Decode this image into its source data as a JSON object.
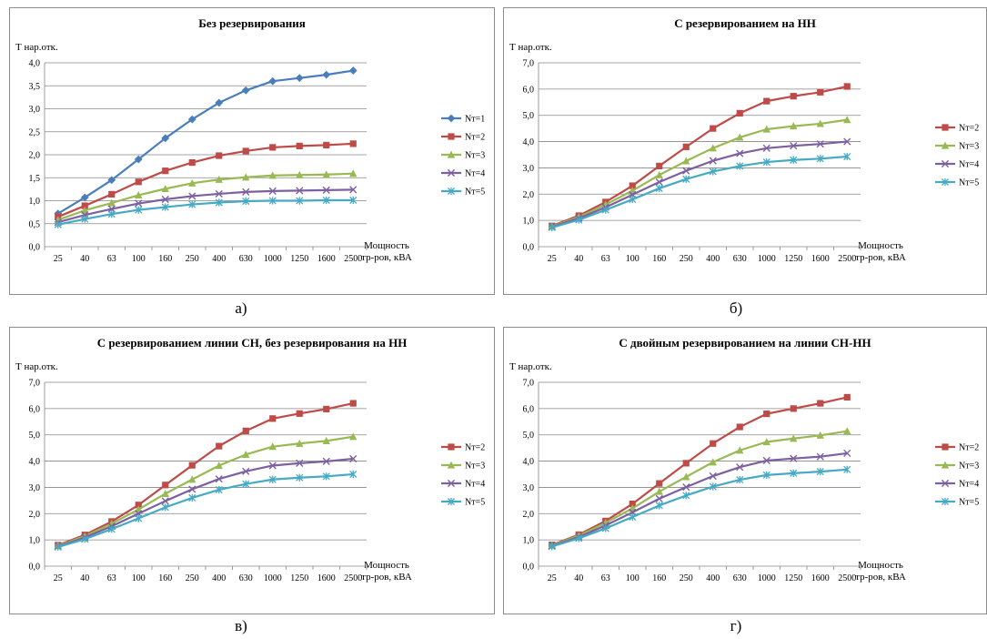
{
  "chart_data": [
    {
      "type": "line",
      "panel_label": "а)",
      "title": "Без резервирования",
      "ylabel": "Т нар.отк.",
      "xlabel": [
        "Мощность",
        "тр-ров, кВА"
      ],
      "categories": [
        "25",
        "40",
        "63",
        "100",
        "160",
        "250",
        "400",
        "630",
        "1000",
        "1250",
        "1600",
        "2500"
      ],
      "ylim": [
        0,
        4.0
      ],
      "yticks": [
        "0,0",
        "0,5",
        "1,0",
        "1,5",
        "2,0",
        "2,5",
        "3,0",
        "3,5",
        "4,0"
      ],
      "ystep": 0.5,
      "grid": true,
      "legend": "right",
      "series": [
        {
          "name": "Nт=1",
          "color": "#4a7ebb",
          "marker": "diamond",
          "values": [
            0.72,
            1.07,
            1.45,
            1.9,
            2.36,
            2.77,
            3.13,
            3.4,
            3.6,
            3.67,
            3.74,
            3.83
          ]
        },
        {
          "name": "Nт=2",
          "color": "#be4b48",
          "marker": "square",
          "values": [
            0.65,
            0.89,
            1.14,
            1.41,
            1.65,
            1.83,
            1.98,
            2.08,
            2.16,
            2.19,
            2.21,
            2.24
          ]
        },
        {
          "name": "Nт=3",
          "color": "#98b954",
          "marker": "triangle",
          "values": [
            0.58,
            0.79,
            0.95,
            1.12,
            1.26,
            1.38,
            1.46,
            1.51,
            1.55,
            1.56,
            1.57,
            1.59
          ]
        },
        {
          "name": "Nт=4",
          "color": "#7d60a0",
          "marker": "x",
          "values": [
            0.53,
            0.69,
            0.82,
            0.94,
            1.03,
            1.1,
            1.15,
            1.19,
            1.21,
            1.22,
            1.23,
            1.24
          ]
        },
        {
          "name": "Nт=5",
          "color": "#46aac5",
          "marker": "star",
          "values": [
            0.48,
            0.6,
            0.71,
            0.8,
            0.86,
            0.92,
            0.96,
            0.99,
            1.0,
            1.0,
            1.01,
            1.01
          ]
        }
      ]
    },
    {
      "type": "line",
      "panel_label": "б)",
      "title": "С резервированием на НН",
      "ylabel": "Т нар.отк.",
      "xlabel": [
        "Мощность",
        "тр-ров, кВА"
      ],
      "categories": [
        "25",
        "40",
        "63",
        "100",
        "160",
        "250",
        "400",
        "630",
        "1000",
        "1250",
        "1600",
        "2500"
      ],
      "ylim": [
        0,
        7.0
      ],
      "yticks": [
        "0,0",
        "1,0",
        "2,0",
        "3,0",
        "4,0",
        "5,0",
        "6,0",
        "7,0"
      ],
      "ystep": 1.0,
      "grid": true,
      "legend": "right",
      "series": [
        {
          "name": "Nт=2",
          "color": "#be4b48",
          "marker": "square",
          "values": [
            0.79,
            1.18,
            1.7,
            2.32,
            3.07,
            3.8,
            4.5,
            5.08,
            5.54,
            5.73,
            5.88,
            6.1
          ]
        },
        {
          "name": "Nт=3",
          "color": "#98b954",
          "marker": "triangle",
          "values": [
            0.77,
            1.13,
            1.6,
            2.13,
            2.73,
            3.26,
            3.75,
            4.16,
            4.47,
            4.59,
            4.68,
            4.83
          ]
        },
        {
          "name": "Nт=4",
          "color": "#7d60a0",
          "marker": "x",
          "values": [
            0.75,
            1.08,
            1.5,
            1.98,
            2.46,
            2.89,
            3.27,
            3.55,
            3.75,
            3.84,
            3.91,
            4.0
          ]
        },
        {
          "name": "Nт=5",
          "color": "#46aac5",
          "marker": "star",
          "values": [
            0.73,
            1.02,
            1.4,
            1.8,
            2.22,
            2.57,
            2.86,
            3.07,
            3.22,
            3.3,
            3.35,
            3.43
          ]
        }
      ]
    },
    {
      "type": "line",
      "panel_label": "в)",
      "title": "С резервированием линии СН, без резервирования на НН",
      "ylabel": "Т нар.отк.",
      "xlabel": [
        "Мощность",
        "тр-ров, кВА"
      ],
      "categories": [
        "25",
        "40",
        "63",
        "100",
        "160",
        "250",
        "400",
        "630",
        "1000",
        "1250",
        "1600",
        "2500"
      ],
      "ylim": [
        0,
        7.0
      ],
      "yticks": [
        "0,0",
        "1,0",
        "2,0",
        "3,0",
        "4,0",
        "5,0",
        "6,0",
        "7,0"
      ],
      "ystep": 1.0,
      "grid": true,
      "legend": "right",
      "series": [
        {
          "name": "Nт=2",
          "color": "#be4b48",
          "marker": "square",
          "values": [
            0.8,
            1.19,
            1.7,
            2.33,
            3.09,
            3.84,
            4.57,
            5.15,
            5.62,
            5.81,
            5.98,
            6.2
          ]
        },
        {
          "name": "Nт=3",
          "color": "#98b954",
          "marker": "triangle",
          "values": [
            0.78,
            1.14,
            1.62,
            2.16,
            2.76,
            3.3,
            3.83,
            4.25,
            4.55,
            4.67,
            4.77,
            4.93
          ]
        },
        {
          "name": "Nт=4",
          "color": "#7d60a0",
          "marker": "x",
          "values": [
            0.75,
            1.09,
            1.52,
            2.0,
            2.48,
            2.93,
            3.32,
            3.61,
            3.83,
            3.92,
            3.99,
            4.09
          ]
        },
        {
          "name": "Nт=5",
          "color": "#46aac5",
          "marker": "star",
          "values": [
            0.73,
            1.03,
            1.41,
            1.82,
            2.24,
            2.6,
            2.91,
            3.13,
            3.3,
            3.37,
            3.42,
            3.5
          ]
        }
      ]
    },
    {
      "type": "line",
      "panel_label": "г)",
      "title": "С двойным резервированием на линии СН-НН",
      "ylabel": "Т нар.отк.",
      "xlabel": [
        "Мощность",
        "тр-ров, кВА"
      ],
      "categories": [
        "25",
        "40",
        "63",
        "100",
        "160",
        "250",
        "400",
        "630",
        "1000",
        "1250",
        "1600",
        "2500"
      ],
      "ylim": [
        0,
        7.0
      ],
      "yticks": [
        "0,0",
        "1,0",
        "2,0",
        "3,0",
        "4,0",
        "5,0",
        "6,0",
        "7,0"
      ],
      "ystep": 1.0,
      "grid": true,
      "legend": "right",
      "series": [
        {
          "name": "Nт=2",
          "color": "#be4b48",
          "marker": "square",
          "values": [
            0.81,
            1.2,
            1.72,
            2.37,
            3.15,
            3.92,
            4.67,
            5.3,
            5.8,
            6.0,
            6.2,
            6.43
          ]
        },
        {
          "name": "Nт=3",
          "color": "#98b954",
          "marker": "triangle",
          "values": [
            0.79,
            1.16,
            1.65,
            2.2,
            2.84,
            3.4,
            3.96,
            4.41,
            4.73,
            4.86,
            4.98,
            5.14
          ]
        },
        {
          "name": "Nт=4",
          "color": "#7d60a0",
          "marker": "x",
          "values": [
            0.77,
            1.11,
            1.55,
            2.05,
            2.57,
            3.01,
            3.43,
            3.77,
            4.02,
            4.1,
            4.17,
            4.3
          ]
        },
        {
          "name": "Nт=5",
          "color": "#46aac5",
          "marker": "star",
          "values": [
            0.75,
            1.06,
            1.44,
            1.87,
            2.31,
            2.69,
            3.03,
            3.29,
            3.47,
            3.54,
            3.6,
            3.68
          ]
        }
      ]
    }
  ]
}
